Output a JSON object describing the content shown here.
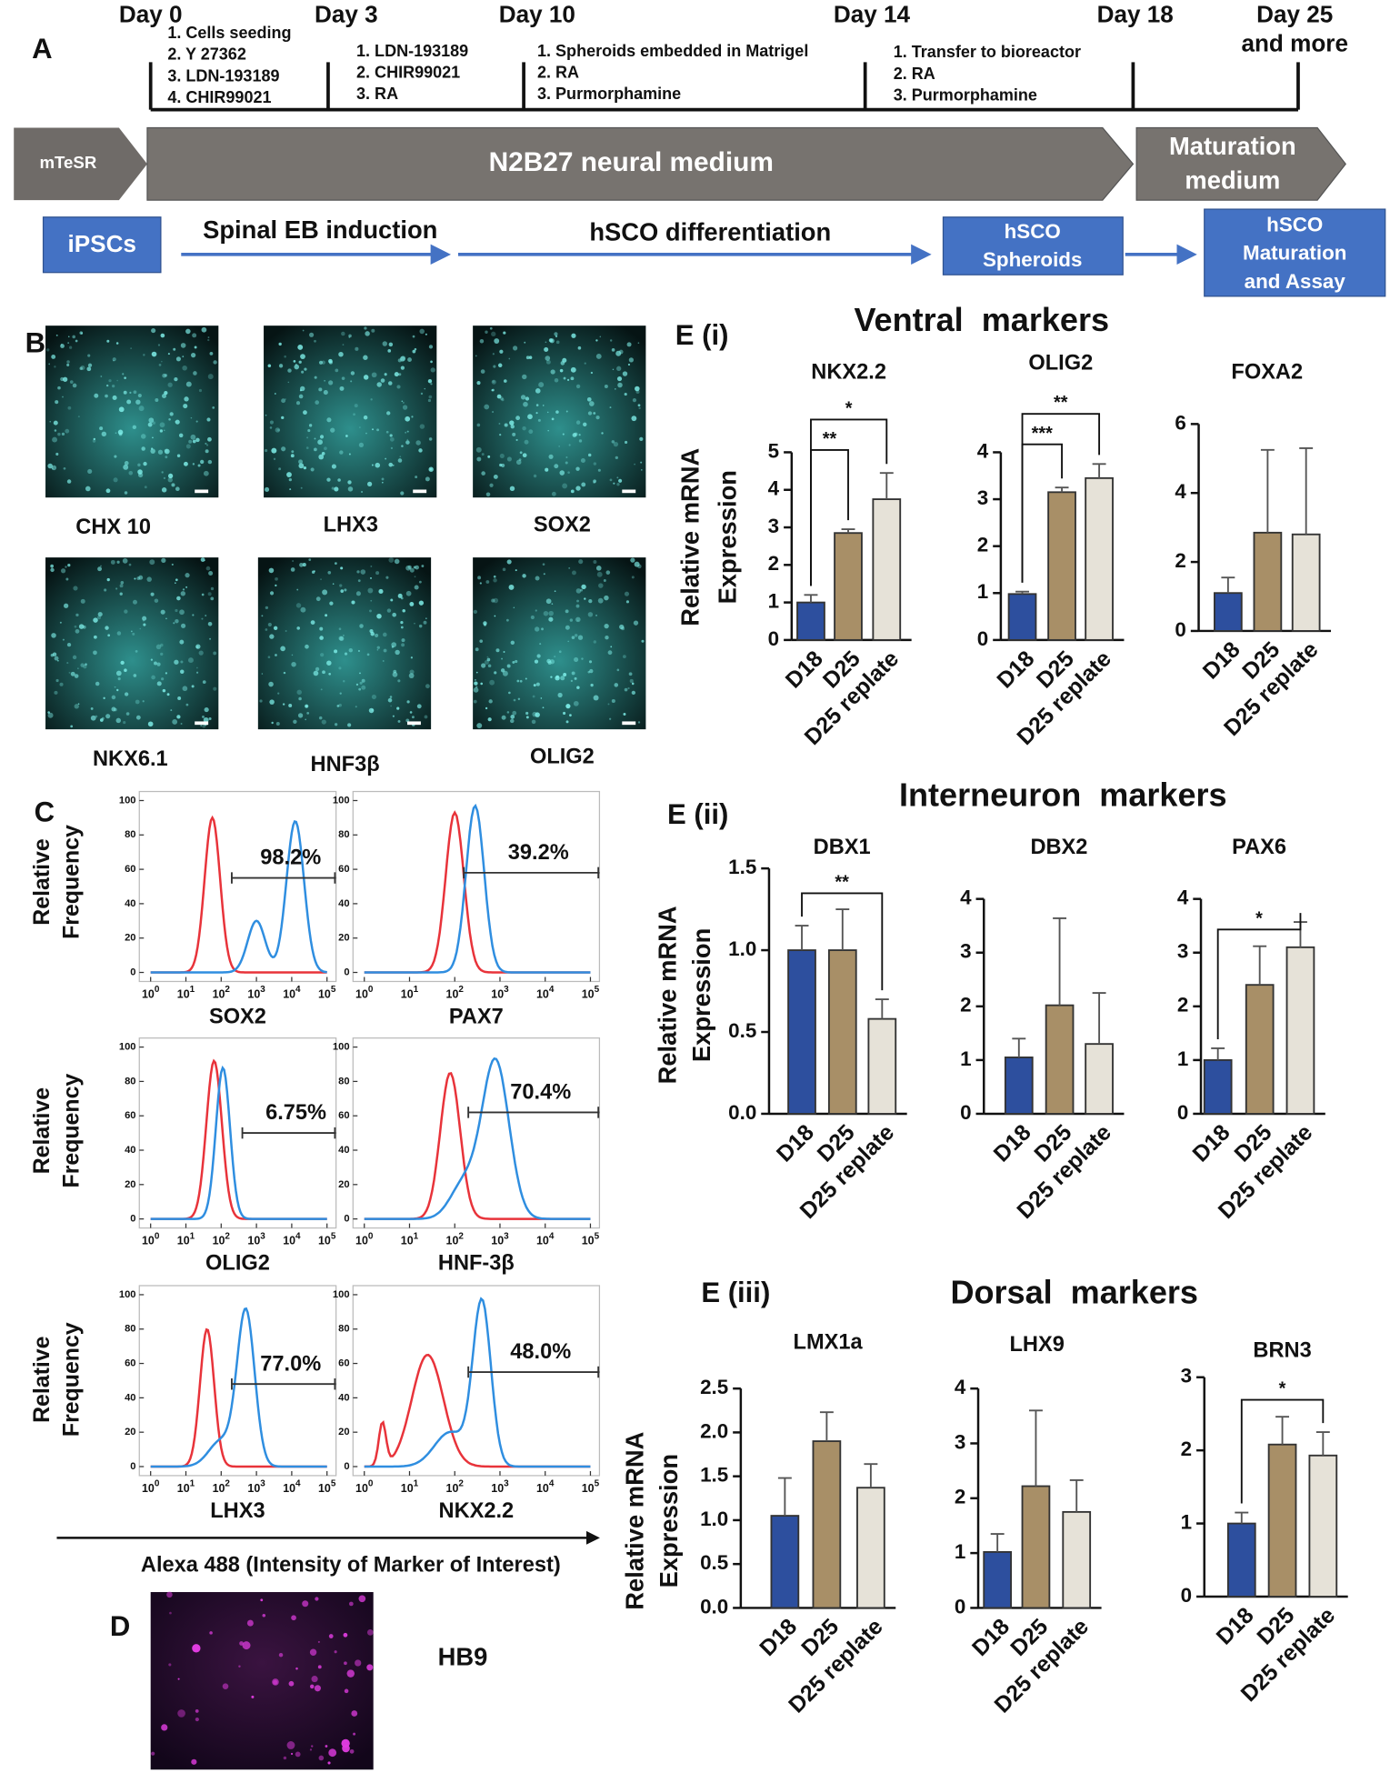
{
  "panel_labels": {
    "A": "A",
    "B": "B",
    "C": "C",
    "D": "D"
  },
  "timeline": {
    "days": [
      "Day 0",
      "Day 3",
      "Day 10",
      "Day 14",
      "Day 18"
    ],
    "final_day": [
      "Day 25",
      "and more"
    ],
    "steps": [
      [
        "1.  Cells seeding",
        "2.  Y 27362",
        "3.  LDN-193189",
        "4.  CHIR99021"
      ],
      [
        "1.  LDN-193189",
        "2.  CHIR99021",
        "3.  RA"
      ],
      [
        "1.  Spheroids embedded in Matrigel",
        "2.  RA",
        "3.  Purmorphamine"
      ],
      [
        "1.  Transfer to bioreactor",
        "2.  RA",
        "3.  Purmorphamine"
      ]
    ],
    "media": {
      "start": "mTeSR",
      "main": "N2B27 neural medium",
      "end": [
        "Maturation",
        "medium"
      ]
    },
    "stages": {
      "start": "iPSCs",
      "eb": "Spinal EB induction",
      "diff": "hSCO differentiation",
      "spheroids": [
        "hSCO",
        "Spheroids"
      ],
      "maturation": [
        "hSCO",
        "Maturation",
        "and Assay"
      ]
    }
  },
  "micrographs": [
    "CHX 10",
    "LHX3",
    "SOX2",
    "NKX6.1",
    "HNF3β",
    "OLIG2"
  ],
  "flow": {
    "y_label": [
      "Relative",
      "Frequency"
    ],
    "yticks": [
      0,
      20,
      40,
      60,
      80,
      100
    ],
    "xtick_base": "10",
    "xtick_exponents": [
      0,
      1,
      2,
      3,
      4,
      5
    ],
    "x_axis_label": "Alexa 488 (Intensity of Marker of Interest)",
    "plots": [
      {
        "marker": "SOX2",
        "gate": "98.2%"
      },
      {
        "marker": "PAX7",
        "gate": "39.2%"
      },
      {
        "marker": "OLIG2",
        "gate": "6.75%"
      },
      {
        "marker": "HNF-3β",
        "gate": "70.4%"
      },
      {
        "marker": "LHX3",
        "gate": "77.0%"
      },
      {
        "marker": "NKX2.2",
        "gate": "48.0%"
      }
    ]
  },
  "hb9": "HB9",
  "sections": [
    {
      "label": "E (i)",
      "title": "Ventral  markers"
    },
    {
      "label": "E (ii)",
      "title": "Interneuron  markers"
    },
    {
      "label": "E (iii)",
      "title": "Dorsal  markers"
    }
  ],
  "chart_data": [
    {
      "type": "bar",
      "title": "NKX2.2",
      "y_label": [
        "Relative mRNA",
        "Expression"
      ],
      "categories": [
        "D18",
        "D25",
        "D25 replate"
      ],
      "values": [
        1.0,
        2.85,
        3.75
      ],
      "errors": [
        0.2,
        0.1,
        0.7
      ],
      "colors": [
        "#2d4f9e",
        "#a88f67",
        "#e6e2d8"
      ],
      "ylim": [
        0,
        5
      ],
      "yticks": [
        0,
        1,
        2,
        3,
        4,
        5
      ],
      "significance": [
        {
          "pair": [
            "D18",
            "D25"
          ],
          "label": "**"
        },
        {
          "pair": [
            "D18",
            "D25 replate"
          ],
          "label": "*"
        }
      ]
    },
    {
      "type": "bar",
      "title": "OLIG2",
      "categories": [
        "D18",
        "D25",
        "D25 replate"
      ],
      "values": [
        0.98,
        3.15,
        3.45
      ],
      "errors": [
        0.05,
        0.1,
        0.3
      ],
      "colors": [
        "#2d4f9e",
        "#a88f67",
        "#e6e2d8"
      ],
      "ylim": [
        0,
        4
      ],
      "yticks": [
        0,
        1,
        2,
        3,
        4
      ],
      "significance": [
        {
          "pair": [
            "D18",
            "D25"
          ],
          "label": "***"
        },
        {
          "pair": [
            "D18",
            "D25 replate"
          ],
          "label": "**"
        }
      ]
    },
    {
      "type": "bar",
      "title": "FOXA2",
      "categories": [
        "D18",
        "D25",
        "D25 replate"
      ],
      "values": [
        1.1,
        2.85,
        2.8
      ],
      "errors": [
        0.45,
        2.4,
        2.5
      ],
      "colors": [
        "#2d4f9e",
        "#a88f67",
        "#e6e2d8"
      ],
      "ylim": [
        0,
        6
      ],
      "yticks": [
        0,
        2,
        4,
        6
      ]
    },
    {
      "type": "bar",
      "title": "DBX1",
      "y_label": [
        "Relative mRNA",
        "Expression"
      ],
      "categories": [
        "D18",
        "D25",
        "D25 replate"
      ],
      "values": [
        1.0,
        1.0,
        0.58
      ],
      "errors": [
        0.15,
        0.25,
        0.12
      ],
      "colors": [
        "#2d4f9e",
        "#a88f67",
        "#e6e2d8"
      ],
      "ylim": [
        0,
        1.5
      ],
      "yticks": [
        {
          "value": 0,
          "label": "0.0"
        },
        0.5,
        {
          "value": 1,
          "label": "1.0"
        },
        1.5
      ],
      "significance": [
        {
          "pair": [
            "D18",
            "D25 replate"
          ],
          "label": "**"
        }
      ]
    },
    {
      "type": "bar",
      "title": "DBX2",
      "categories": [
        "D18",
        "D25",
        "D25 replate"
      ],
      "values": [
        1.05,
        2.02,
        1.3
      ],
      "errors": [
        0.35,
        1.62,
        0.95
      ],
      "colors": [
        "#2d4f9e",
        "#a88f67",
        "#e6e2d8"
      ],
      "ylim": [
        0,
        4
      ],
      "yticks": [
        0,
        1,
        2,
        3,
        4
      ]
    },
    {
      "type": "bar",
      "title": "PAX6",
      "categories": [
        "D18",
        "D25",
        "D25 replate"
      ],
      "values": [
        1.0,
        2.4,
        3.1
      ],
      "errors": [
        0.22,
        0.72,
        0.47
      ],
      "colors": [
        "#2d4f9e",
        "#a88f67",
        "#e6e2d8"
      ],
      "ylim": [
        0,
        4
      ],
      "yticks": [
        0,
        1,
        2,
        3,
        4
      ],
      "significance": [
        {
          "pair": [
            "D18",
            "D25 replate"
          ],
          "label": "*"
        }
      ]
    },
    {
      "type": "bar",
      "title": "LMX1a",
      "y_label": [
        "Relative mRNA",
        "Expression"
      ],
      "categories": [
        "D18",
        "D25",
        "D25 replate"
      ],
      "values": [
        1.05,
        1.9,
        1.37
      ],
      "errors": [
        0.43,
        0.33,
        0.27
      ],
      "colors": [
        "#2d4f9e",
        "#a88f67",
        "#e6e2d8"
      ],
      "ylim": [
        0,
        2.5
      ],
      "yticks": [
        {
          "value": 0,
          "label": "0.0"
        },
        0.5,
        {
          "value": 1,
          "label": "1.0"
        },
        1.5,
        {
          "value": 2,
          "label": "2.0"
        },
        2.5
      ]
    },
    {
      "type": "bar",
      "title": "LHX9",
      "categories": [
        "D18",
        "D25",
        "D25 replate"
      ],
      "values": [
        1.02,
        2.22,
        1.75
      ],
      "errors": [
        0.33,
        1.38,
        0.58
      ],
      "colors": [
        "#2d4f9e",
        "#a88f67",
        "#e6e2d8"
      ],
      "ylim": [
        0,
        4
      ],
      "yticks": [
        0,
        1,
        2,
        3,
        4
      ]
    },
    {
      "type": "bar",
      "title": "BRN3",
      "categories": [
        "D18",
        "D25",
        "D25 replate"
      ],
      "values": [
        1.0,
        2.08,
        1.93
      ],
      "errors": [
        0.15,
        0.38,
        0.32
      ],
      "colors": [
        "#2d4f9e",
        "#a88f67",
        "#e6e2d8"
      ],
      "ylim": [
        0,
        3
      ],
      "yticks": [
        0,
        1,
        2,
        3
      ],
      "significance": [
        {
          "pair": [
            "D18",
            "D25 replate"
          ],
          "label": "*"
        }
      ]
    }
  ]
}
